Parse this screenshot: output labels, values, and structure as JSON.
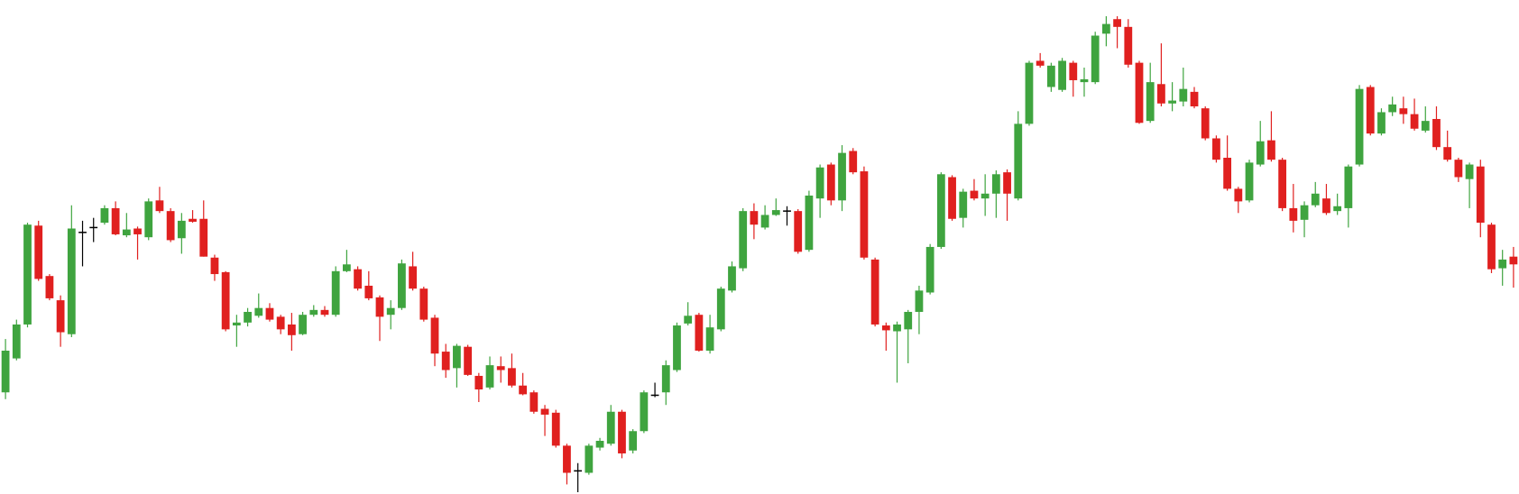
{
  "chart_data": {
    "type": "candlestick",
    "up_color": "#3fa43f",
    "down_color": "#e0201f",
    "flat_color": "#000000",
    "open": [
      105,
      140,
      175,
      277,
      225,
      200,
      165,
      270,
      275,
      280,
      295,
      267,
      274,
      265,
      303,
      292,
      264,
      284,
      284,
      244,
      229,
      174,
      177,
      184,
      192,
      183,
      175,
      165,
      185,
      190,
      185,
      230,
      232,
      215,
      203,
      185,
      192,
      235,
      212,
      182,
      147,
      130,
      152,
      122,
      110,
      132,
      130,
      112,
      105,
      88,
      84,
      50,
      24,
      22,
      48,
      52,
      85,
      45,
      65,
      102,
      105,
      128,
      176,
      185,
      148,
      170,
      210,
      233,
      292,
      275,
      288,
      292,
      292,
      252,
      305,
      340,
      303,
      354,
      333,
      242,
      174,
      168,
      170,
      188,
      208,
      255,
      327,
      285,
      313,
      305,
      310,
      332,
      305,
      382,
      447,
      420,
      417,
      445,
      425,
      425,
      475,
      490,
      482,
      445,
      385,
      423,
      403,
      405,
      415,
      398,
      367,
      347,
      315,
      303,
      340,
      365,
      345,
      295,
      283,
      298,
      305,
      292,
      295,
      340,
      420,
      372,
      394,
      398,
      392,
      375,
      387,
      358,
      345,
      325,
      338,
      278,
      233,
      245
    ],
    "high": [
      160,
      180,
      280,
      282,
      227,
      205,
      298,
      282,
      285,
      298,
      302,
      290,
      276,
      305,
      317,
      295,
      290,
      293,
      303,
      247,
      230,
      185,
      192,
      207,
      197,
      185,
      187,
      188,
      195,
      194,
      235,
      252,
      235,
      230,
      205,
      200,
      242,
      250,
      214,
      185,
      155,
      155,
      154,
      125,
      142,
      142,
      145,
      125,
      107,
      92,
      87,
      52,
      32,
      52,
      58,
      92,
      87,
      67,
      107,
      115,
      138,
      177,
      198,
      187,
      185,
      214,
      240,
      295,
      300,
      298,
      305,
      297,
      294,
      313,
      340,
      342,
      360,
      357,
      338,
      244,
      177,
      178,
      190,
      215,
      258,
      332,
      329,
      315,
      325,
      330,
      334,
      335,
      395,
      447,
      455,
      445,
      450,
      447,
      440,
      477,
      493,
      493,
      490,
      447,
      445,
      465,
      425,
      440,
      420,
      400,
      370,
      370,
      317,
      345,
      385,
      395,
      347,
      320,
      302,
      322,
      320,
      310,
      340,
      422,
      422,
      398,
      410,
      410,
      408,
      400,
      400,
      375,
      347,
      342,
      345,
      280,
      252,
      255
    ],
    "low": [
      98,
      138,
      172,
      220,
      200,
      152,
      162,
      235,
      260,
      278,
      267,
      265,
      242,
      262,
      290,
      260,
      248,
      280,
      245,
      220,
      168,
      152,
      173,
      182,
      178,
      165,
      148,
      164,
      183,
      183,
      183,
      229,
      210,
      200,
      158,
      170,
      190,
      210,
      178,
      132,
      120,
      110,
      122,
      95,
      108,
      115,
      110,
      102,
      83,
      60,
      48,
      10,
      2,
      20,
      45,
      50,
      37,
      42,
      63,
      100,
      92,
      126,
      174,
      147,
      145,
      168,
      208,
      230,
      263,
      273,
      287,
      277,
      248,
      250,
      285,
      298,
      292,
      330,
      242,
      173,
      148,
      115,
      135,
      165,
      206,
      253,
      282,
      275,
      303,
      287,
      285,
      282,
      303,
      380,
      440,
      415,
      415,
      410,
      410,
      423,
      462,
      460,
      440,
      382,
      383,
      400,
      395,
      400,
      398,
      365,
      342,
      313,
      290,
      301,
      338,
      343,
      292,
      270,
      265,
      296,
      288,
      288,
      275,
      338,
      370,
      370,
      390,
      382,
      375,
      373,
      355,
      343,
      322,
      295,
      265,
      228,
      215,
      213
    ],
    "close": [
      148,
      175,
      278,
      222,
      202,
      167,
      274,
      270,
      275,
      295,
      268,
      273,
      268,
      302,
      292,
      262,
      282,
      281,
      245,
      227,
      170,
      177,
      188,
      192,
      180,
      170,
      164,
      185,
      190,
      185,
      230,
      237,
      212,
      202,
      183,
      192,
      238,
      212,
      180,
      145,
      128,
      153,
      123,
      108,
      133,
      128,
      112,
      103,
      85,
      82,
      50,
      22,
      24,
      50,
      55,
      85,
      42,
      65,
      105,
      102,
      133,
      174,
      184,
      148,
      172,
      212,
      235,
      292,
      278,
      288,
      293,
      292,
      250,
      308,
      337,
      303,
      352,
      332,
      244,
      175,
      169,
      175,
      188,
      210,
      255,
      330,
      284,
      312,
      305,
      310,
      330,
      310,
      382,
      445,
      442,
      442,
      447,
      427,
      428,
      473,
      485,
      482,
      443,
      383,
      425,
      403,
      406,
      418,
      400,
      367,
      345,
      315,
      302,
      342,
      364,
      345,
      295,
      282,
      298,
      310,
      290,
      297,
      338,
      418,
      372,
      394,
      402,
      392,
      377,
      385,
      358,
      345,
      327,
      340,
      280,
      232,
      242,
      237
    ]
  }
}
